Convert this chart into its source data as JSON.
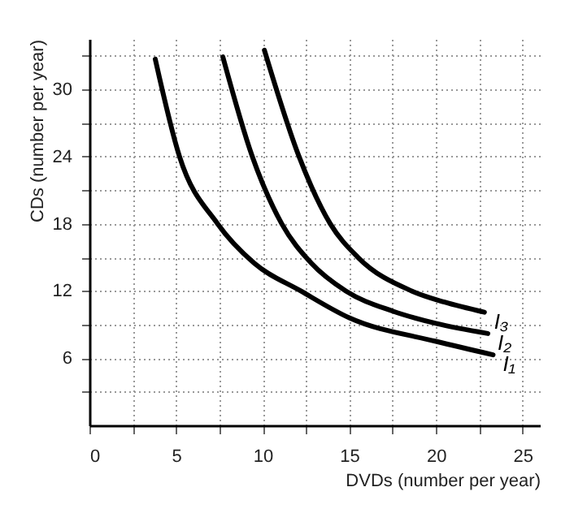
{
  "chart_data": {
    "type": "line",
    "xlabel": "DVDs (number per year)",
    "ylabel": "CDs (number per year)",
    "xlim": [
      0,
      26
    ],
    "ylim": [
      0,
      34.5
    ],
    "xticks": [
      0,
      {
        "value": 2.5,
        "label": null
      },
      5,
      {
        "value": 7.5,
        "label": null
      },
      10,
      {
        "value": 12.5,
        "label": null
      },
      15,
      {
        "value": 17.5,
        "label": null
      },
      20,
      {
        "value": 22.5,
        "label": null
      },
      25
    ],
    "yticks": [
      {
        "value": 3,
        "label": null
      },
      6,
      {
        "value": 9,
        "label": null
      },
      12,
      {
        "value": 15,
        "label": null
      },
      18,
      {
        "value": 21,
        "label": null
      },
      24,
      {
        "value": 27,
        "label": null
      },
      30,
      {
        "value": 33,
        "label": null
      }
    ],
    "grid": true,
    "marker": "none",
    "line_style": "solid",
    "legend": false,
    "series": [
      {
        "name": "I₁",
        "color": "#000000",
        "x": [
          3.8,
          5.2,
          7.4,
          9.5,
          12.2,
          15,
          20,
          23.3
        ],
        "values": [
          32.7,
          24,
          18,
          14.5,
          12,
          9.6,
          7.5,
          6.3
        ]
      },
      {
        "name": "I₂",
        "color": "#000000",
        "x": [
          7.7,
          9.4,
          11.1,
          12.8,
          14.8,
          17.5,
          20,
          23
        ],
        "values": [
          32.9,
          24,
          18,
          14.5,
          12,
          10.2,
          9.1,
          8.2
        ]
      },
      {
        "name": "I₃",
        "color": "#000000",
        "x": [
          10.1,
          12.1,
          13.9,
          15.5,
          18.6,
          20.5,
          22.8
        ],
        "values": [
          33.5,
          24,
          18,
          15,
          12,
          11,
          10.1
        ]
      }
    ]
  }
}
